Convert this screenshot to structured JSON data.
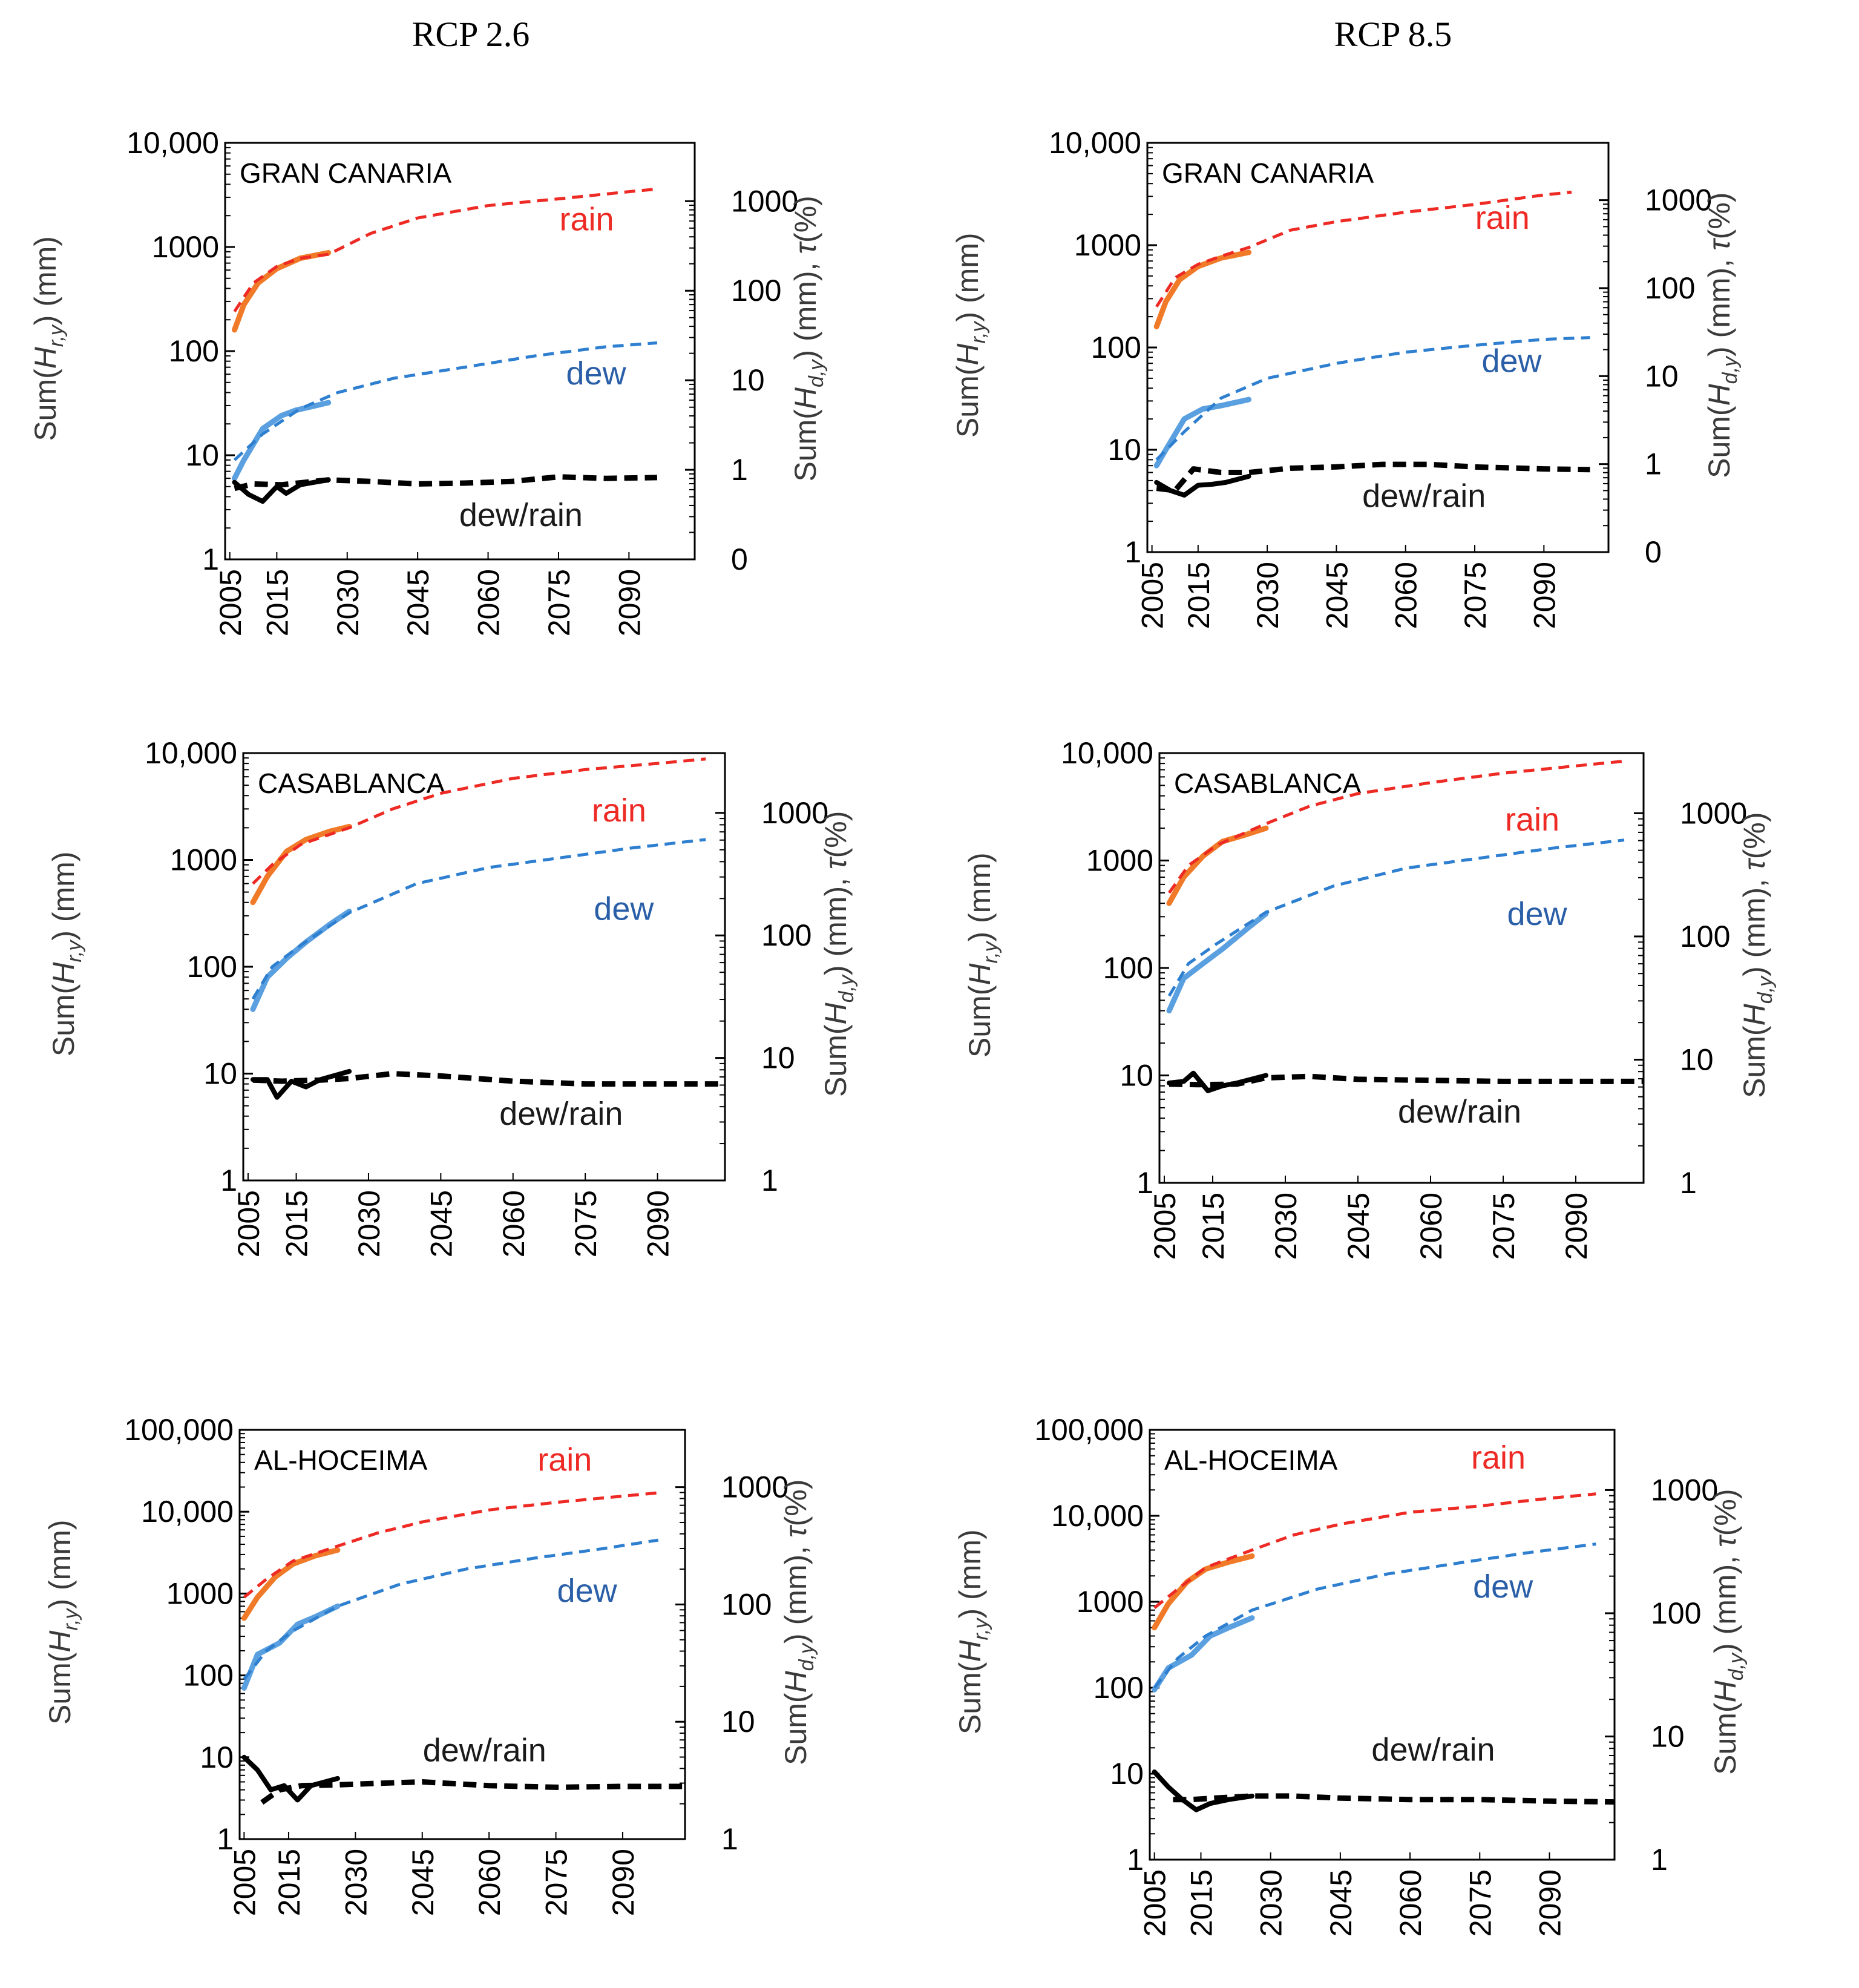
{
  "columns": [
    "RCP 2.6",
    "RCP 8.5"
  ],
  "left_axis_label": "Sum(H_r,y) (mm)",
  "right_axis_label": "Sum(H_d,y) (mm), τ(%)",
  "colors": {
    "rain_obs": "#f07a28",
    "rain_proj": "#ee2a24",
    "dew_obs": "#5aa0e0",
    "dew_proj": "#2e7fd0",
    "ratio": "#000000",
    "label_rain": "#ee2a24",
    "label_dew": "#2a5fa8",
    "label_ratio": "#1a1a1a"
  },
  "chart_data": [
    {
      "type": "line",
      "station": "GRAN CANARIA",
      "scenario": "RCP 2.6",
      "y_scale": "log",
      "ylim": [
        1,
        10000
      ],
      "yticks": [
        "1",
        "10",
        "100",
        "1000",
        "10,000"
      ],
      "right_ticks": [
        "0",
        "1",
        "10",
        "100",
        "1000"
      ],
      "x_ticks": [
        "2005",
        "2015",
        "2030",
        "2045",
        "2060",
        "2075",
        "2090"
      ],
      "xlim": [
        2004,
        2104
      ],
      "legend_labels": [
        "rain",
        "dew",
        "dew/rain"
      ],
      "series": [
        {
          "name": "rain",
          "style": "obs",
          "x": [
            2006,
            2008,
            2011,
            2015,
            2020,
            2026
          ],
          "y": [
            160,
            280,
            450,
            620,
            780,
            880
          ]
        },
        {
          "name": "rain",
          "style": "proj",
          "x": [
            2006,
            2010,
            2015,
            2020,
            2026,
            2035,
            2045,
            2060,
            2075,
            2090,
            2096
          ],
          "y": [
            240,
            450,
            650,
            780,
            850,
            1350,
            1900,
            2500,
            2900,
            3400,
            3600
          ]
        },
        {
          "name": "dew",
          "style": "obs",
          "x": [
            2006,
            2008,
            2012,
            2016,
            2019,
            2026
          ],
          "y": [
            6,
            9,
            18,
            24,
            27,
            32
          ]
        },
        {
          "name": "dew",
          "style": "proj",
          "x": [
            2006,
            2012,
            2020,
            2028,
            2040,
            2055,
            2070,
            2085,
            2096
          ],
          "y": [
            9,
            16,
            28,
            40,
            55,
            70,
            90,
            110,
            120
          ]
        },
        {
          "name": "dew/rain",
          "style": "obs",
          "x": [
            2006,
            2009,
            2012,
            2015,
            2017,
            2020,
            2026
          ],
          "y": [
            5.5,
            4.2,
            3.6,
            5,
            4.3,
            5.2,
            5.8
          ]
        },
        {
          "name": "dew/rain",
          "style": "proj",
          "x": [
            2006,
            2010,
            2016,
            2026,
            2035,
            2045,
            2055,
            2065,
            2075,
            2085,
            2096
          ],
          "y": [
            4.8,
            5.3,
            5.2,
            5.8,
            5.6,
            5.3,
            5.4,
            5.6,
            6.2,
            6.0,
            6.1
          ]
        }
      ]
    },
    {
      "type": "line",
      "station": "GRAN CANARIA",
      "scenario": "RCP 8.5",
      "y_scale": "log",
      "ylim": [
        1,
        10000
      ],
      "yticks": [
        "1",
        "10",
        "100",
        "1000",
        "10,000"
      ],
      "right_ticks": [
        "0",
        "1",
        "10",
        "100",
        "1000"
      ],
      "x_ticks": [
        "2005",
        "2015",
        "2030",
        "2045",
        "2060",
        "2075",
        "2090"
      ],
      "xlim": [
        2004,
        2104
      ],
      "legend_labels": [
        "rain",
        "dew",
        "dew/rain"
      ],
      "series": [
        {
          "name": "rain",
          "style": "obs",
          "x": [
            2006,
            2008,
            2011,
            2015,
            2020,
            2026
          ],
          "y": [
            160,
            280,
            460,
            620,
            750,
            850
          ]
        },
        {
          "name": "rain",
          "style": "proj",
          "x": [
            2006,
            2010,
            2015,
            2020,
            2026,
            2035,
            2045,
            2060,
            2075,
            2090,
            2096
          ],
          "y": [
            250,
            480,
            650,
            780,
            950,
            1400,
            1700,
            2100,
            2500,
            3100,
            3300
          ]
        },
        {
          "name": "dew",
          "style": "obs",
          "x": [
            2006,
            2008,
            2012,
            2016,
            2020,
            2026
          ],
          "y": [
            7,
            10,
            20,
            25,
            27,
            31
          ]
        },
        {
          "name": "dew",
          "style": "proj",
          "x": [
            2006,
            2012,
            2020,
            2030,
            2045,
            2060,
            2075,
            2090,
            2100
          ],
          "y": [
            8,
            15,
            32,
            50,
            70,
            90,
            105,
            120,
            125
          ]
        },
        {
          "name": "dew/rain",
          "style": "obs",
          "x": [
            2006,
            2009,
            2012,
            2015,
            2018,
            2021,
            2026
          ],
          "y": [
            4.8,
            4.0,
            3.6,
            4.5,
            4.6,
            4.8,
            5.5
          ]
        },
        {
          "name": "dew/rain",
          "style": "proj",
          "x": [
            2006,
            2010,
            2014,
            2020,
            2026,
            2035,
            2045,
            2055,
            2065,
            2075,
            2090,
            2100
          ],
          "y": [
            4.2,
            4.0,
            6.5,
            6.0,
            6.0,
            6.6,
            6.8,
            7.2,
            7.2,
            6.8,
            6.5,
            6.4
          ]
        }
      ]
    },
    {
      "type": "line",
      "station": "CASABLANCA",
      "scenario": "RCP 2.6",
      "y_scale": "log",
      "ylim": [
        1,
        10000
      ],
      "yticks": [
        "1",
        "10",
        "100",
        "1000",
        "10,000"
      ],
      "right_ticks": [
        "1",
        "10",
        "100",
        "1000"
      ],
      "x_ticks": [
        "2005",
        "2015",
        "2030",
        "2045",
        "2060",
        "2075",
        "2090"
      ],
      "xlim": [
        2004,
        2104
      ],
      "legend_labels": [
        "rain",
        "dew",
        "dew/rain"
      ],
      "series": [
        {
          "name": "rain",
          "style": "obs",
          "x": [
            2006,
            2009,
            2013,
            2017,
            2022,
            2026
          ],
          "y": [
            400,
            700,
            1200,
            1550,
            1850,
            2050
          ]
        },
        {
          "name": "rain",
          "style": "proj",
          "x": [
            2006,
            2010,
            2016,
            2026,
            2035,
            2045,
            2060,
            2075,
            2090,
            2100
          ],
          "y": [
            600,
            900,
            1400,
            2000,
            3000,
            4200,
            5800,
            7000,
            8000,
            8800
          ]
        },
        {
          "name": "dew",
          "style": "obs",
          "x": [
            2006,
            2009,
            2013,
            2017,
            2022,
            2026
          ],
          "y": [
            40,
            80,
            120,
            170,
            250,
            330
          ]
        },
        {
          "name": "dew",
          "style": "proj",
          "x": [
            2006,
            2010,
            2016,
            2026,
            2040,
            2055,
            2070,
            2085,
            2100
          ],
          "y": [
            50,
            100,
            160,
            320,
            600,
            850,
            1050,
            1300,
            1550
          ]
        },
        {
          "name": "dew/rain",
          "style": "obs",
          "x": [
            2006,
            2009,
            2011,
            2014,
            2017,
            2020,
            2026
          ],
          "y": [
            8.8,
            8.8,
            6,
            8.5,
            7.5,
            8.8,
            10.5
          ]
        },
        {
          "name": "dew/rain",
          "style": "proj",
          "x": [
            2006,
            2012,
            2020,
            2026,
            2035,
            2045,
            2060,
            2075,
            2090,
            2104
          ],
          "y": [
            8.7,
            8.5,
            8.7,
            9,
            10,
            9.5,
            8.5,
            8,
            8,
            8
          ]
        }
      ]
    },
    {
      "type": "line",
      "station": "CASABLANCA",
      "scenario": "RCP 8.5",
      "y_scale": "log",
      "ylim": [
        1,
        10000
      ],
      "yticks": [
        "1",
        "10",
        "100",
        "1000",
        "10,000"
      ],
      "right_ticks": [
        "1",
        "10",
        "100",
        "1000"
      ],
      "x_ticks": [
        "2005",
        "2015",
        "2030",
        "2045",
        "2060",
        "2075",
        "2090"
      ],
      "xlim": [
        2004,
        2104
      ],
      "legend_labels": [
        "rain",
        "dew",
        "dew/rain"
      ],
      "series": [
        {
          "name": "rain",
          "style": "obs",
          "x": [
            2006,
            2009,
            2013,
            2017,
            2022,
            2026
          ],
          "y": [
            400,
            700,
            1100,
            1500,
            1750,
            2000
          ]
        },
        {
          "name": "rain",
          "style": "proj",
          "x": [
            2006,
            2010,
            2016,
            2026,
            2035,
            2045,
            2060,
            2075,
            2090,
            2100
          ],
          "y": [
            500,
            900,
            1400,
            2200,
            3200,
            4200,
            5300,
            6500,
            7600,
            8400
          ]
        },
        {
          "name": "dew",
          "style": "obs",
          "x": [
            2006,
            2009,
            2013,
            2017,
            2022,
            2026
          ],
          "y": [
            40,
            80,
            110,
            150,
            230,
            320
          ]
        },
        {
          "name": "dew",
          "style": "proj",
          "x": [
            2006,
            2010,
            2016,
            2026,
            2040,
            2055,
            2070,
            2085,
            2100
          ],
          "y": [
            55,
            110,
            170,
            330,
            580,
            850,
            1050,
            1300,
            1550
          ]
        },
        {
          "name": "dew/rain",
          "style": "obs",
          "x": [
            2006,
            2009,
            2011,
            2014,
            2017,
            2020,
            2026
          ],
          "y": [
            8.5,
            8.8,
            10.5,
            7.2,
            8,
            8.5,
            10
          ]
        },
        {
          "name": "dew/rain",
          "style": "proj",
          "x": [
            2006,
            2012,
            2020,
            2026,
            2035,
            2045,
            2060,
            2075,
            2090,
            2104
          ],
          "y": [
            8.3,
            8.2,
            8.3,
            9.5,
            9.8,
            9.2,
            9,
            8.8,
            8.8,
            8.8
          ]
        }
      ]
    },
    {
      "type": "line",
      "station": "AL-HOCEIMA",
      "scenario": "RCP 2.6",
      "y_scale": "log",
      "ylim": [
        1,
        100000
      ],
      "yticks": [
        "1",
        "10",
        "100",
        "1000",
        "10,000",
        "100,000"
      ],
      "right_ticks": [
        "1",
        "10",
        "100",
        "1000"
      ],
      "x_ticks": [
        "2005",
        "2015",
        "2030",
        "2045",
        "2060",
        "2075",
        "2090"
      ],
      "xlim": [
        2004,
        2104
      ],
      "legend_labels": [
        "rain",
        "dew",
        "dew/rain"
      ],
      "series": [
        {
          "name": "rain",
          "style": "obs",
          "x": [
            2005,
            2008,
            2012,
            2016,
            2021,
            2026
          ],
          "y": [
            500,
            900,
            1600,
            2300,
            2900,
            3400
          ]
        },
        {
          "name": "rain",
          "style": "proj",
          "x": [
            2005,
            2010,
            2016,
            2026,
            2035,
            2045,
            2060,
            2075,
            2090,
            2098
          ],
          "y": [
            900,
            1500,
            2500,
            3800,
            5500,
            7500,
            10500,
            13000,
            15500,
            17000
          ]
        },
        {
          "name": "dew",
          "style": "obs",
          "x": [
            2005,
            2008,
            2013,
            2017,
            2021,
            2026
          ],
          "y": [
            70,
            180,
            250,
            420,
            520,
            700
          ]
        },
        {
          "name": "dew",
          "style": "proj",
          "x": [
            2005,
            2010,
            2016,
            2026,
            2040,
            2055,
            2070,
            2085,
            2098
          ],
          "y": [
            90,
            200,
            350,
            700,
            1300,
            2000,
            2700,
            3500,
            4500
          ]
        },
        {
          "name": "dew/rain",
          "style": "obs",
          "x": [
            2005,
            2008,
            2011,
            2014,
            2017,
            2020,
            2026
          ],
          "y": [
            10,
            7,
            4,
            4.5,
            3,
            4.5,
            5.5
          ]
        },
        {
          "name": "dew/rain",
          "style": "proj",
          "x": [
            2009,
            2013,
            2018,
            2026,
            2035,
            2045,
            2060,
            2075,
            2090,
            2104
          ],
          "y": [
            2.8,
            4,
            4.5,
            4.6,
            4.8,
            5,
            4.5,
            4.3,
            4.4,
            4.4
          ]
        }
      ]
    },
    {
      "type": "line",
      "station": "AL-HOCEIMA",
      "scenario": "RCP 8.5",
      "y_scale": "log",
      "ylim": [
        1,
        100000
      ],
      "yticks": [
        "1",
        "10",
        "100",
        "1000",
        "10,000",
        "100,000"
      ],
      "right_ticks": [
        "1",
        "10",
        "100",
        "1000"
      ],
      "x_ticks": [
        "2005",
        "2015",
        "2030",
        "2045",
        "2060",
        "2075",
        "2090"
      ],
      "xlim": [
        2004,
        2104
      ],
      "legend_labels": [
        "rain",
        "dew",
        "dew/rain"
      ],
      "series": [
        {
          "name": "rain",
          "style": "obs",
          "x": [
            2005,
            2008,
            2012,
            2016,
            2021,
            2026
          ],
          "y": [
            500,
            950,
            1700,
            2400,
            2900,
            3400
          ]
        },
        {
          "name": "rain",
          "style": "proj",
          "x": [
            2005,
            2010,
            2016,
            2026,
            2035,
            2045,
            2060,
            2075,
            2090,
            2100
          ],
          "y": [
            850,
            1400,
            2500,
            4000,
            6000,
            8000,
            11000,
            13000,
            16000,
            18000
          ]
        },
        {
          "name": "dew",
          "style": "obs",
          "x": [
            2005,
            2008,
            2013,
            2017,
            2021,
            2026
          ],
          "y": [
            95,
            170,
            240,
            400,
            500,
            650
          ]
        },
        {
          "name": "dew",
          "style": "proj",
          "x": [
            2005,
            2010,
            2016,
            2026,
            2040,
            2055,
            2070,
            2085,
            2100
          ],
          "y": [
            100,
            220,
            400,
            800,
            1400,
            2100,
            2800,
            3700,
            4700
          ]
        },
        {
          "name": "dew/rain",
          "style": "obs",
          "x": [
            2005,
            2008,
            2011,
            2014,
            2017,
            2021,
            2026
          ],
          "y": [
            10.5,
            7,
            5,
            3.8,
            4.5,
            5,
            5.5
          ]
        },
        {
          "name": "dew/rain",
          "style": "proj",
          "x": [
            2009,
            2013,
            2018,
            2026,
            2035,
            2045,
            2060,
            2075,
            2090,
            2104
          ],
          "y": [
            5,
            5,
            5.2,
            5.5,
            5.5,
            5.2,
            5,
            5,
            4.8,
            4.7
          ]
        }
      ]
    }
  ]
}
